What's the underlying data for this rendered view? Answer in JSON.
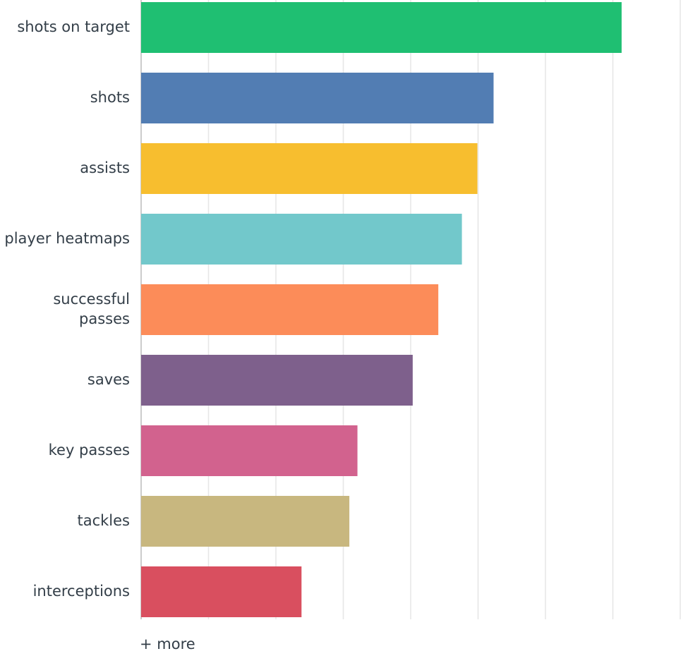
{
  "chart_data": {
    "type": "hbar",
    "categories": [
      "shots on target",
      "shots",
      "assists",
      "player heatmaps",
      "successful passes",
      "saves",
      "key passes",
      "tackles",
      "interceptions"
    ],
    "values": [
      71.3,
      52.3,
      49.9,
      47.6,
      44.1,
      40.3,
      32.1,
      30.9,
      23.8
    ],
    "colors": [
      "#1fbf72",
      "#527db3",
      "#f7be2f",
      "#72c8cb",
      "#fc8c59",
      "#7e608c",
      "#d2628e",
      "#c8b77f",
      "#d94f5f"
    ],
    "xlim": [
      0,
      80
    ],
    "xticks": [
      0,
      10,
      20,
      30,
      40,
      50,
      60,
      70,
      80
    ],
    "grid": true
  },
  "more_label": "+ more"
}
